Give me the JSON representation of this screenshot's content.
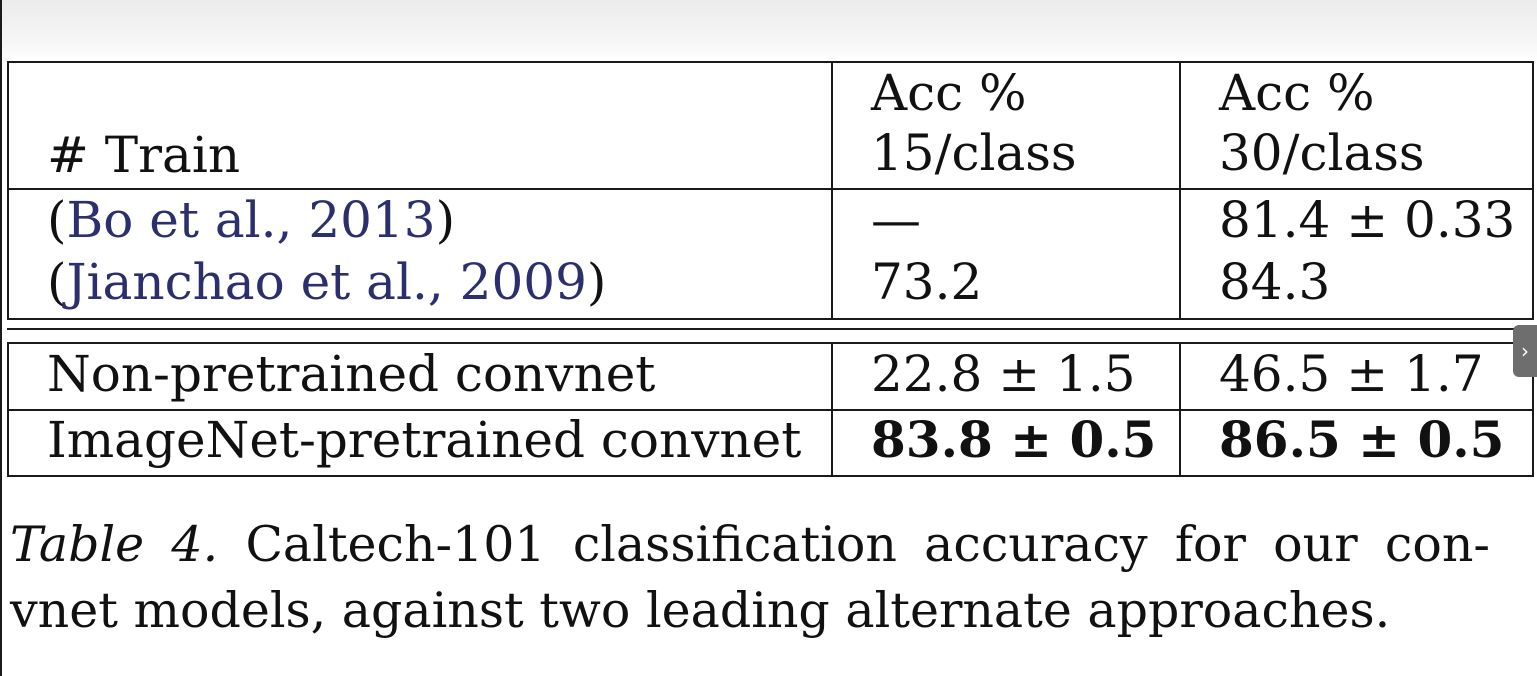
{
  "table": {
    "header": {
      "train": "# Train",
      "col1_line1": "Acc %",
      "col1_line2": "15/class",
      "col2_line1": "Acc %",
      "col2_line2": "30/class"
    },
    "baselines": [
      {
        "open": "(",
        "cite": "Bo et al., 2013",
        "close": ")",
        "acc15": "—",
        "acc30": "81.4 ± 0.33"
      },
      {
        "open": "(",
        "cite": "Jianchao et al., 2009",
        "close": ")",
        "acc15": "73.2",
        "acc30": "84.3"
      }
    ],
    "ours": [
      {
        "method": "Non-pretrained convnet",
        "acc15": "22.8 ± 1.5",
        "acc30": "46.5 ± 1.7"
      },
      {
        "method": "ImageNet-pretrained convnet",
        "acc15": "83.8 ± 0.5",
        "acc30": "86.5 ± 0.5"
      }
    ]
  },
  "caption": {
    "label": "Table 4.",
    "line1": "Caltech-101 classification accuracy for our con-",
    "line2": "vnet models, against two leading alternate approaches."
  },
  "scroll_tab": {
    "icon": "chevron-right-icon",
    "glyph": "›"
  }
}
